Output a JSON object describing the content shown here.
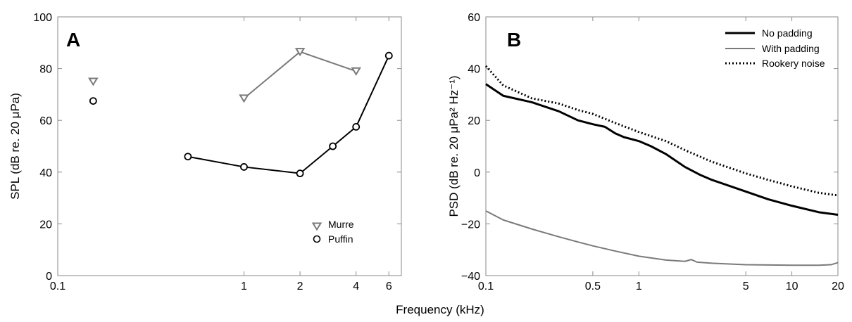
{
  "xlabel": "Frequency (kHz)",
  "colors": {
    "murre": "#7a7a7a",
    "puffin": "#000000",
    "no_padding": "#000000",
    "with_padding": "#7a7a7a",
    "rookery": "#000000",
    "frame": "#8a8a8a"
  },
  "chart_data": [
    {
      "type": "line",
      "panel": "A",
      "xscale": "log",
      "xlim": [
        0.1,
        7
      ],
      "ylim": [
        0,
        100
      ],
      "ylabel": "SPL (dB re. 20 μPa)",
      "xticks": [
        0.1,
        1,
        2,
        4,
        6
      ],
      "xtick_labels": [
        "0.1",
        "1",
        "2",
        "4",
        "6"
      ],
      "yticks": [
        0,
        20,
        40,
        60,
        80,
        100
      ],
      "ytick_labels": [
        "0",
        "20",
        "40",
        "60",
        "80",
        "100"
      ],
      "legend_position": "bottom-right",
      "series": [
        {
          "name": "Murre",
          "marker": "triangle-down",
          "isolated": [
            [
              0.155,
              75
            ]
          ],
          "connected": [
            [
              1,
              68.5
            ],
            [
              2,
              86.5
            ],
            [
              4,
              79
            ]
          ]
        },
        {
          "name": "Puffin",
          "marker": "circle",
          "isolated": [
            [
              0.155,
              67.5
            ]
          ],
          "connected": [
            [
              0.5,
              46
            ],
            [
              1,
              42
            ],
            [
              2,
              39.5
            ],
            [
              3,
              50
            ],
            [
              4,
              57.5
            ],
            [
              6,
              85
            ]
          ]
        }
      ]
    },
    {
      "type": "line",
      "panel": "B",
      "xscale": "log",
      "xlim": [
        0.1,
        20
      ],
      "ylim": [
        -40,
        60
      ],
      "ylabel": "PSD (dB re. 20 μPa² Hz⁻¹)",
      "xticks": [
        0.1,
        0.5,
        1,
        5,
        10,
        20
      ],
      "xtick_labels": [
        "0.1",
        "0.5",
        "1",
        "5",
        "10",
        "20"
      ],
      "yticks": [
        -40,
        -20,
        0,
        20,
        40,
        60
      ],
      "ytick_labels": [
        "−40",
        "−20",
        "0",
        "20",
        "40",
        "60"
      ],
      "legend_position": "top-right",
      "series": [
        {
          "name": "No padding",
          "style": "solid-thick",
          "points": [
            [
              0.1,
              34
            ],
            [
              0.13,
              29.5
            ],
            [
              0.2,
              27
            ],
            [
              0.3,
              23.5
            ],
            [
              0.4,
              20
            ],
            [
              0.5,
              18.5
            ],
            [
              0.6,
              17.5
            ],
            [
              0.7,
              15
            ],
            [
              0.8,
              13.5
            ],
            [
              1,
              12
            ],
            [
              1.2,
              10
            ],
            [
              1.5,
              7
            ],
            [
              2,
              2
            ],
            [
              2.5,
              -1
            ],
            [
              3,
              -3
            ],
            [
              5,
              -7.5
            ],
            [
              7,
              -10.5
            ],
            [
              10,
              -13
            ],
            [
              15,
              -15.5
            ],
            [
              20,
              -16.5
            ]
          ]
        },
        {
          "name": "With padding",
          "style": "solid-gray",
          "points": [
            [
              0.1,
              -15
            ],
            [
              0.13,
              -18.5
            ],
            [
              0.2,
              -22
            ],
            [
              0.3,
              -25
            ],
            [
              0.4,
              -27
            ],
            [
              0.5,
              -28.5
            ],
            [
              0.7,
              -30.5
            ],
            [
              1,
              -32.5
            ],
            [
              1.5,
              -34
            ],
            [
              2,
              -34.5
            ],
            [
              2.2,
              -33.8
            ],
            [
              2.4,
              -34.8
            ],
            [
              3,
              -35.2
            ],
            [
              5,
              -35.8
            ],
            [
              10,
              -36
            ],
            [
              15,
              -36
            ],
            [
              18,
              -35.8
            ],
            [
              20,
              -35
            ]
          ]
        },
        {
          "name": "Rookery noise",
          "style": "dotted",
          "points": [
            [
              0.1,
              41
            ],
            [
              0.13,
              33.5
            ],
            [
              0.2,
              28.5
            ],
            [
              0.3,
              26.5
            ],
            [
              0.4,
              24
            ],
            [
              0.5,
              22.5
            ],
            [
              0.7,
              19
            ],
            [
              1,
              15.5
            ],
            [
              1.5,
              12
            ],
            [
              2,
              8.5
            ],
            [
              3,
              4
            ],
            [
              5,
              -0.5
            ],
            [
              7,
              -3
            ],
            [
              10,
              -5.5
            ],
            [
              15,
              -8
            ],
            [
              20,
              -9
            ]
          ]
        }
      ]
    }
  ]
}
